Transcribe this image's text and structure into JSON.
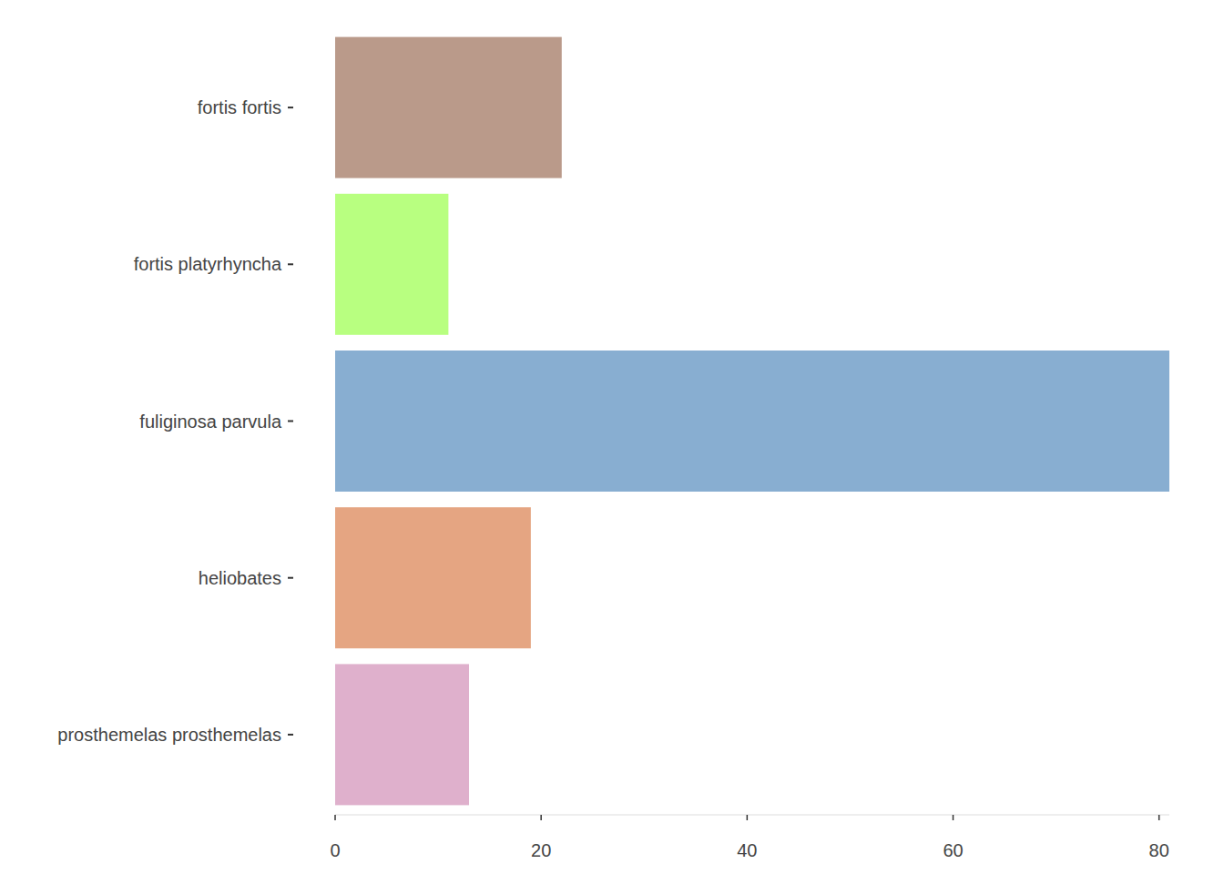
{
  "chart_data": {
    "type": "bar",
    "orientation": "horizontal",
    "categories": [
      "fortis fortis",
      "fortis platyrhyncha",
      "fuliginosa parvula",
      "heliobates ",
      "prosthemelas prosthemelas"
    ],
    "values": [
      22,
      11,
      81,
      19,
      13
    ],
    "colors": [
      "#ba9a8a",
      "#b8ff80",
      "#88aed1",
      "#e5a582",
      "#dfb0cc"
    ],
    "xlim": [
      0,
      81
    ],
    "xticks": [
      0,
      20,
      40,
      60,
      80
    ],
    "grid": false
  }
}
